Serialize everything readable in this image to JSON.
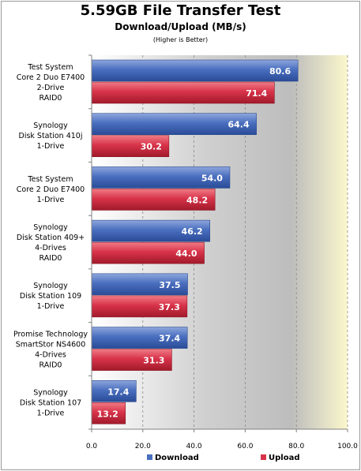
{
  "chart_data": {
    "type": "bar",
    "orientation": "horizontal",
    "title": "5.59GB File Transfer Test",
    "subtitle": "Download/Upload  (MB/s)",
    "note": "(Higher is Better)",
    "categories": [
      [
        "Test System",
        "Core 2 Duo E7400",
        "2-Drive",
        "RAID0"
      ],
      [
        "Synology",
        "Disk Station 410j",
        "1-Drive"
      ],
      [
        "Test System",
        "Core 2 Duo  E7400",
        "1-Drive"
      ],
      [
        "Synology",
        "Disk Station 409+",
        "4-Drives",
        "RAID0"
      ],
      [
        "Synology",
        "Disk Station 109",
        "1-Drive"
      ],
      [
        "Promise Technology",
        "SmartStor NS4600",
        "4-Drives",
        "RAID0"
      ],
      [
        "Synology",
        "Disk Station 107",
        "1-Drive"
      ]
    ],
    "series": [
      {
        "name": "Download",
        "color": "#4a6fbf",
        "values": [
          80.6,
          64.4,
          54.0,
          46.2,
          37.5,
          37.4,
          17.4
        ]
      },
      {
        "name": "Upload",
        "color": "#d8334a",
        "values": [
          71.4,
          30.2,
          48.2,
          44.0,
          37.3,
          31.3,
          13.2
        ]
      }
    ],
    "value_labels": {
      "Download": [
        "80.6",
        "64.4",
        "54.0",
        "46.2",
        "37.5",
        "37.4",
        "17.4"
      ],
      "Upload": [
        "71.4",
        "30.2",
        "48.2",
        "44.0",
        "37.3",
        "31.3",
        "13.2"
      ]
    },
    "xlim": [
      0,
      100
    ],
    "xticks": [
      "0.0",
      "20.0",
      "40.0",
      "60.0",
      "80.0",
      "100.0"
    ],
    "grid": true,
    "legend_position": "bottom"
  }
}
